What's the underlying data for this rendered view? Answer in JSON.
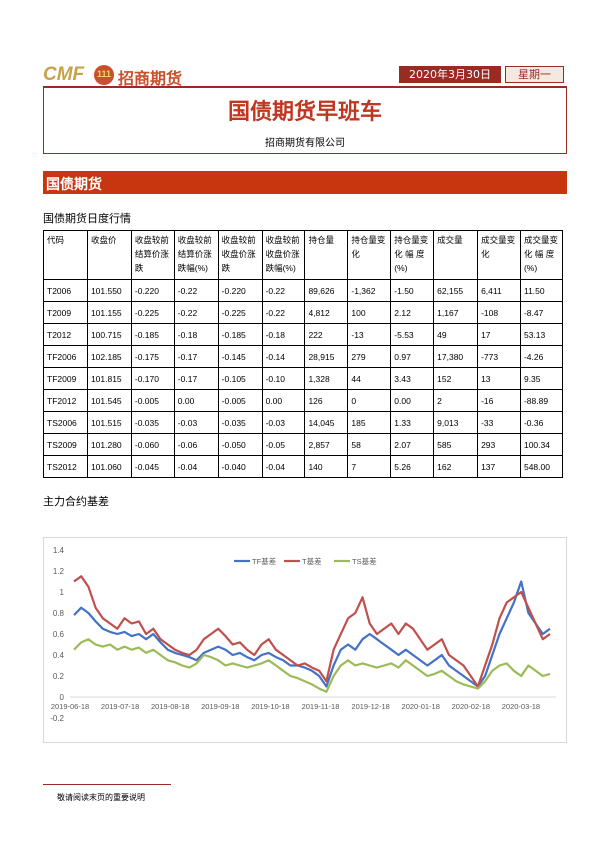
{
  "header": {
    "logo_cmf": "CMF",
    "logo_mark": "111",
    "logo_cn": "招商期货",
    "date": "2020年3月30日",
    "weekday": "星期一",
    "title": "国债期货早班车",
    "company": "招商期货有限公司"
  },
  "section": {
    "title": "国债期货"
  },
  "table": {
    "caption": "国债期货日度行情",
    "headers": [
      "代码",
      "收盘价",
      "收盘较前结算价涨跌",
      "收盘较前结算价涨跌幅(%)",
      "收盘较前收盘价涨跌",
      "收盘较前收盘价涨跌幅(%)",
      "持仓量",
      "持仓量变化",
      "持仓量变化 幅 度 (%)",
      "成交量",
      "成交量变化",
      "成交量变化 幅 度 (%)"
    ],
    "rows": [
      [
        "T2006",
        "101.550",
        "-0.220",
        "-0.22",
        "-0.220",
        "-0.22",
        "89,626",
        "-1,362",
        "-1.50",
        "62,155",
        "6,411",
        "11.50"
      ],
      [
        "T2009",
        "101.155",
        "-0.225",
        "-0.22",
        "-0.225",
        "-0.22",
        "4,812",
        "100",
        "2.12",
        "1,167",
        "-108",
        "-8.47"
      ],
      [
        "T2012",
        "100.715",
        "-0.185",
        "-0.18",
        "-0.185",
        "-0.18",
        "222",
        "-13",
        "-5.53",
        "49",
        "17",
        "53.13"
      ],
      [
        "TF2006",
        "102.185",
        "-0.175",
        "-0.17",
        "-0.145",
        "-0.14",
        "28,915",
        "279",
        "0.97",
        "17,380",
        "-773",
        "-4.26"
      ],
      [
        "TF2009",
        "101.815",
        "-0.170",
        "-0.17",
        "-0.105",
        "-0.10",
        "1,328",
        "44",
        "3.43",
        "152",
        "13",
        "9.35"
      ],
      [
        "TF2012",
        "101.545",
        "-0.005",
        "0.00",
        "-0.005",
        "0.00",
        "126",
        "0",
        "0.00",
        "2",
        "-16",
        "-88.89"
      ],
      [
        "TS2006",
        "101.515",
        "-0.035",
        "-0.03",
        "-0.035",
        "-0.03",
        "14,045",
        "185",
        "1.33",
        "9,013",
        "-33",
        "-0.36"
      ],
      [
        "TS2009",
        "101.280",
        "-0.060",
        "-0.06",
        "-0.050",
        "-0.05",
        "2,857",
        "58",
        "2.07",
        "585",
        "293",
        "100.34"
      ],
      [
        "TS2012",
        "101.060",
        "-0.045",
        "-0.04",
        "-0.040",
        "-0.04",
        "140",
        "7",
        "5.26",
        "162",
        "137",
        "548.00"
      ]
    ]
  },
  "chart_section": {
    "title": "主力合约基差"
  },
  "chart_data": {
    "type": "line",
    "xlabel": "",
    "ylabel": "",
    "ylim": [
      -0.2,
      1.4
    ],
    "yticks": [
      "1.4",
      "1.2",
      "1",
      "0.8",
      "0.6",
      "0.4",
      "0.2",
      "0",
      "-0.2"
    ],
    "xticks": [
      "2019-06-18",
      "2019-07-18",
      "2019-08-18",
      "2019-09-18",
      "2019-10-18",
      "2019-11-18",
      "2019-12-18",
      "2020-01-18",
      "2020-02-18",
      "2020-03-18"
    ],
    "legend_position": "top-center",
    "colors": {
      "TF": "#4472c4",
      "T": "#c0504d",
      "TS": "#9bbb59"
    },
    "series": [
      {
        "name": "TF基差",
        "values": [
          0.78,
          0.85,
          0.8,
          0.72,
          0.65,
          0.62,
          0.6,
          0.62,
          0.58,
          0.6,
          0.55,
          0.6,
          0.52,
          0.45,
          0.42,
          0.4,
          0.38,
          0.35,
          0.42,
          0.45,
          0.48,
          0.45,
          0.4,
          0.42,
          0.38,
          0.35,
          0.4,
          0.42,
          0.38,
          0.35,
          0.3,
          0.3,
          0.28,
          0.25,
          0.2,
          0.1,
          0.3,
          0.45,
          0.5,
          0.45,
          0.55,
          0.6,
          0.55,
          0.5,
          0.45,
          0.4,
          0.45,
          0.4,
          0.35,
          0.3,
          0.35,
          0.4,
          0.3,
          0.25,
          0.2,
          0.15,
          0.1,
          0.2,
          0.4,
          0.6,
          0.75,
          0.9,
          1.1,
          0.8,
          0.7,
          0.6,
          0.65
        ]
      },
      {
        "name": "T基差",
        "values": [
          1.1,
          1.15,
          1.05,
          0.85,
          0.75,
          0.7,
          0.65,
          0.75,
          0.7,
          0.72,
          0.6,
          0.65,
          0.55,
          0.5,
          0.45,
          0.42,
          0.4,
          0.45,
          0.55,
          0.6,
          0.65,
          0.58,
          0.5,
          0.52,
          0.45,
          0.4,
          0.5,
          0.55,
          0.45,
          0.4,
          0.35,
          0.3,
          0.32,
          0.28,
          0.25,
          0.15,
          0.45,
          0.6,
          0.75,
          0.8,
          0.95,
          0.7,
          0.6,
          0.65,
          0.7,
          0.6,
          0.7,
          0.65,
          0.55,
          0.45,
          0.5,
          0.55,
          0.4,
          0.35,
          0.3,
          0.2,
          0.1,
          0.3,
          0.5,
          0.75,
          0.9,
          0.95,
          1.0,
          0.85,
          0.7,
          0.55,
          0.6
        ]
      },
      {
        "name": "TS基差",
        "values": [
          0.45,
          0.52,
          0.55,
          0.5,
          0.48,
          0.5,
          0.45,
          0.48,
          0.45,
          0.47,
          0.42,
          0.45,
          0.4,
          0.35,
          0.33,
          0.3,
          0.28,
          0.32,
          0.4,
          0.38,
          0.35,
          0.3,
          0.32,
          0.3,
          0.28,
          0.3,
          0.32,
          0.35,
          0.3,
          0.25,
          0.2,
          0.18,
          0.15,
          0.12,
          0.08,
          0.05,
          0.2,
          0.3,
          0.35,
          0.3,
          0.32,
          0.3,
          0.28,
          0.3,
          0.32,
          0.28,
          0.35,
          0.3,
          0.25,
          0.2,
          0.22,
          0.25,
          0.2,
          0.15,
          0.12,
          0.1,
          0.08,
          0.15,
          0.25,
          0.3,
          0.32,
          0.25,
          0.2,
          0.3,
          0.25,
          0.2,
          0.22
        ]
      }
    ]
  },
  "footer": {
    "note": "敬请阅读末页的重要说明"
  }
}
